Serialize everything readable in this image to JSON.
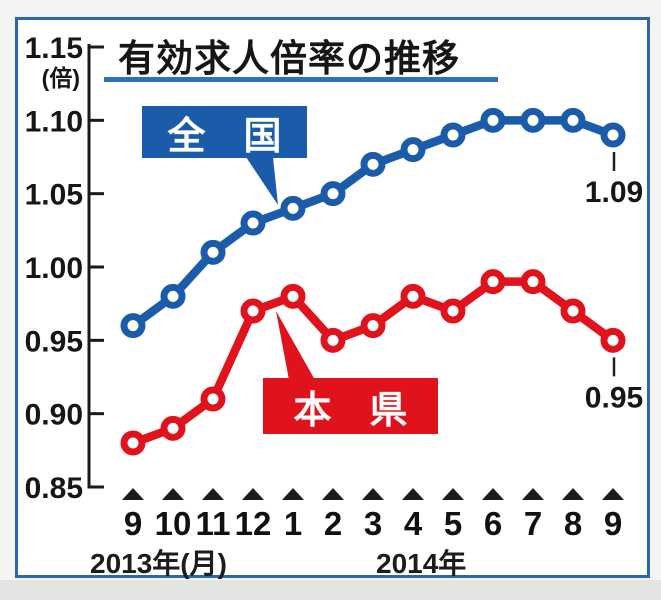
{
  "panel": {
    "title": "有効求人倍率の推移",
    "accent_color": "#2c72ba",
    "border_color": "#2b66ae"
  },
  "y_axis": {
    "unit_label": "(倍)",
    "ticks": [
      "1.15",
      "1.10",
      "1.05",
      "1.00",
      "0.95",
      "0.90",
      "0.85"
    ]
  },
  "x_axis": {
    "tick_marker": "black-up-triangle",
    "month_labels": [
      "9",
      "10",
      "11",
      "12",
      "1",
      "2",
      "3",
      "4",
      "5",
      "6",
      "7",
      "8",
      "9"
    ],
    "year_left": "2013年(月)",
    "year_right": "2014年"
  },
  "callouts": {
    "national_label": "全　国",
    "prefecture_label": "本　県"
  },
  "chart_data": {
    "type": "line",
    "title": "有効求人倍率の推移",
    "ylabel": "倍",
    "ylim": [
      0.85,
      1.15
    ],
    "grid": false,
    "legend_position": "callout-boxes",
    "x": [
      "2013-09",
      "2013-10",
      "2013-11",
      "2013-12",
      "2014-01",
      "2014-02",
      "2014-03",
      "2014-04",
      "2014-05",
      "2014-06",
      "2014-07",
      "2014-08",
      "2014-09"
    ],
    "x_tick_labels": [
      "9",
      "10",
      "11",
      "12",
      "1",
      "2",
      "3",
      "4",
      "5",
      "6",
      "7",
      "8",
      "9"
    ],
    "series": [
      {
        "name": "全国",
        "color": "#1a5caa",
        "values": [
          0.96,
          0.98,
          1.01,
          1.03,
          1.04,
          1.05,
          1.07,
          1.08,
          1.09,
          1.1,
          1.1,
          1.1,
          1.09
        ],
        "end_label": "1.09"
      },
      {
        "name": "本県",
        "color": "#e0121c",
        "values": [
          0.88,
          0.89,
          0.91,
          0.97,
          0.98,
          0.95,
          0.96,
          0.98,
          0.97,
          0.99,
          0.99,
          0.97,
          0.95
        ],
        "end_label": "0.95"
      }
    ]
  }
}
